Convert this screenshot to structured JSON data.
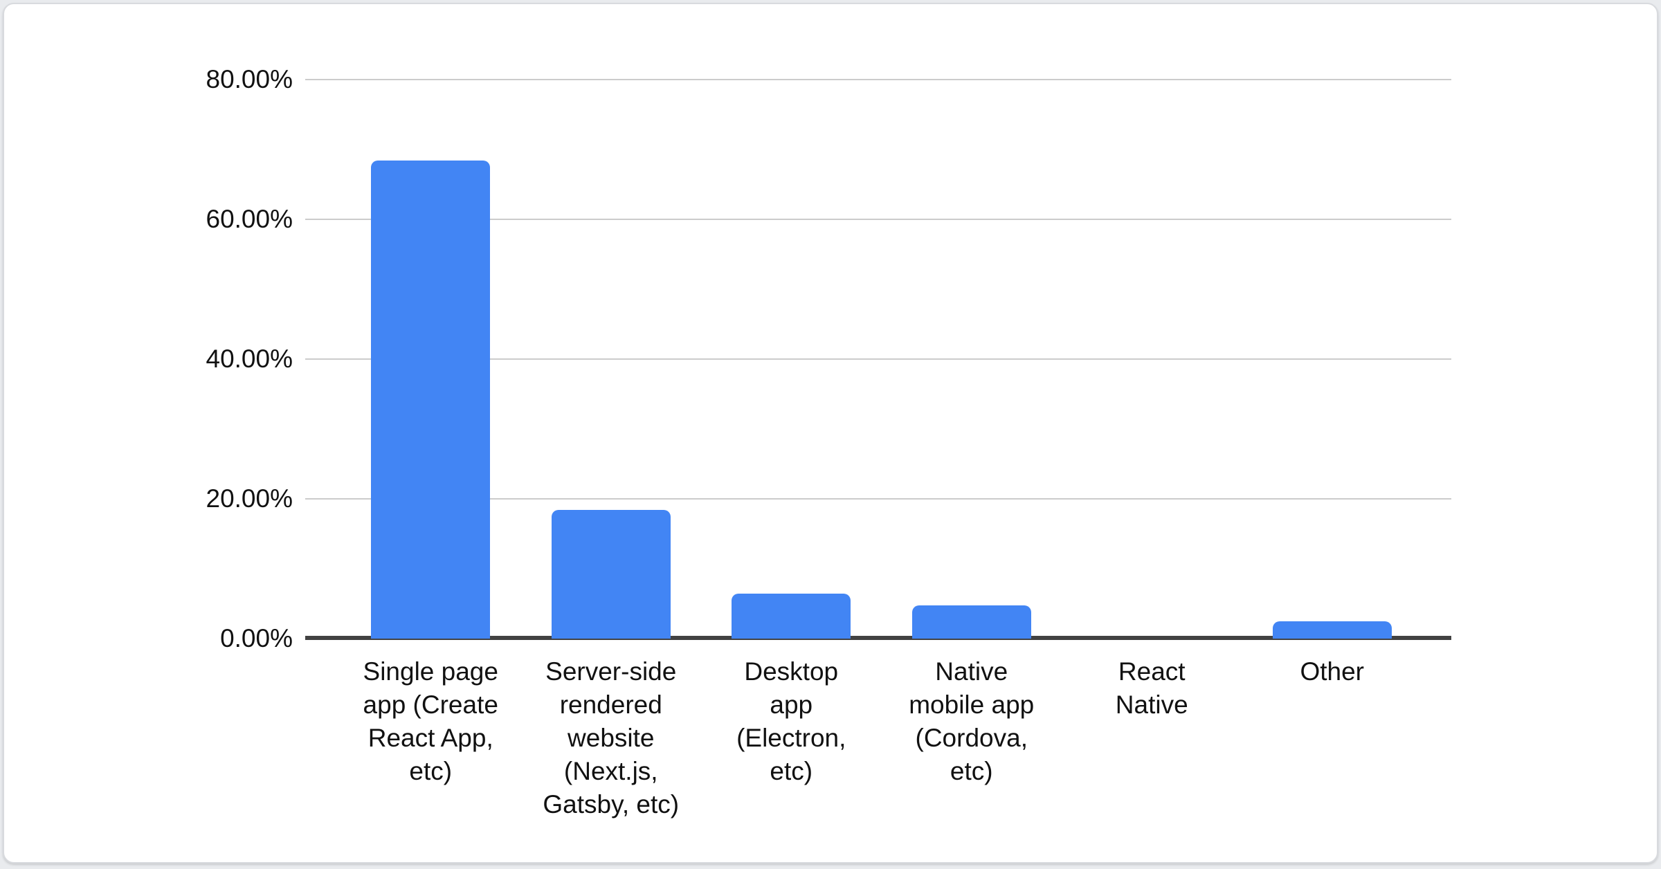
{
  "chart_data": {
    "type": "bar",
    "title": "",
    "xlabel": "",
    "ylabel": "",
    "categories": [
      "Single page app (Create React App, etc)",
      "Server-side rendered website (Next.js, Gatsby, etc)",
      "Desktop app (Electron, etc)",
      "Native mobile app (Cordova, etc)",
      "React Native",
      "Other"
    ],
    "x_tick_lines": [
      "Single page\napp (Create\nReact App,\netc)",
      "Server-side\nrendered\nwebsite\n(Next.js,\nGatsby, etc)",
      "Desktop\napp\n(Electron,\netc)",
      "Native\nmobile app\n(Cordova,\netc)",
      "React\nNative",
      "Other"
    ],
    "values": [
      68.4,
      18.4,
      6.4,
      4.8,
      0,
      2.5
    ],
    "value_unit": "%",
    "yticks": [
      "80.00%",
      "60.00%",
      "40.00%",
      "20.00%",
      "0.00%"
    ],
    "ytick_values": [
      80,
      60,
      40,
      20,
      0
    ],
    "ylim": [
      0,
      80
    ],
    "grid": true,
    "legend": "none",
    "bar_color": "#4285f4",
    "gridline_color": "#cccccc",
    "axis_color": "#424242",
    "label_color": "#111111"
  }
}
